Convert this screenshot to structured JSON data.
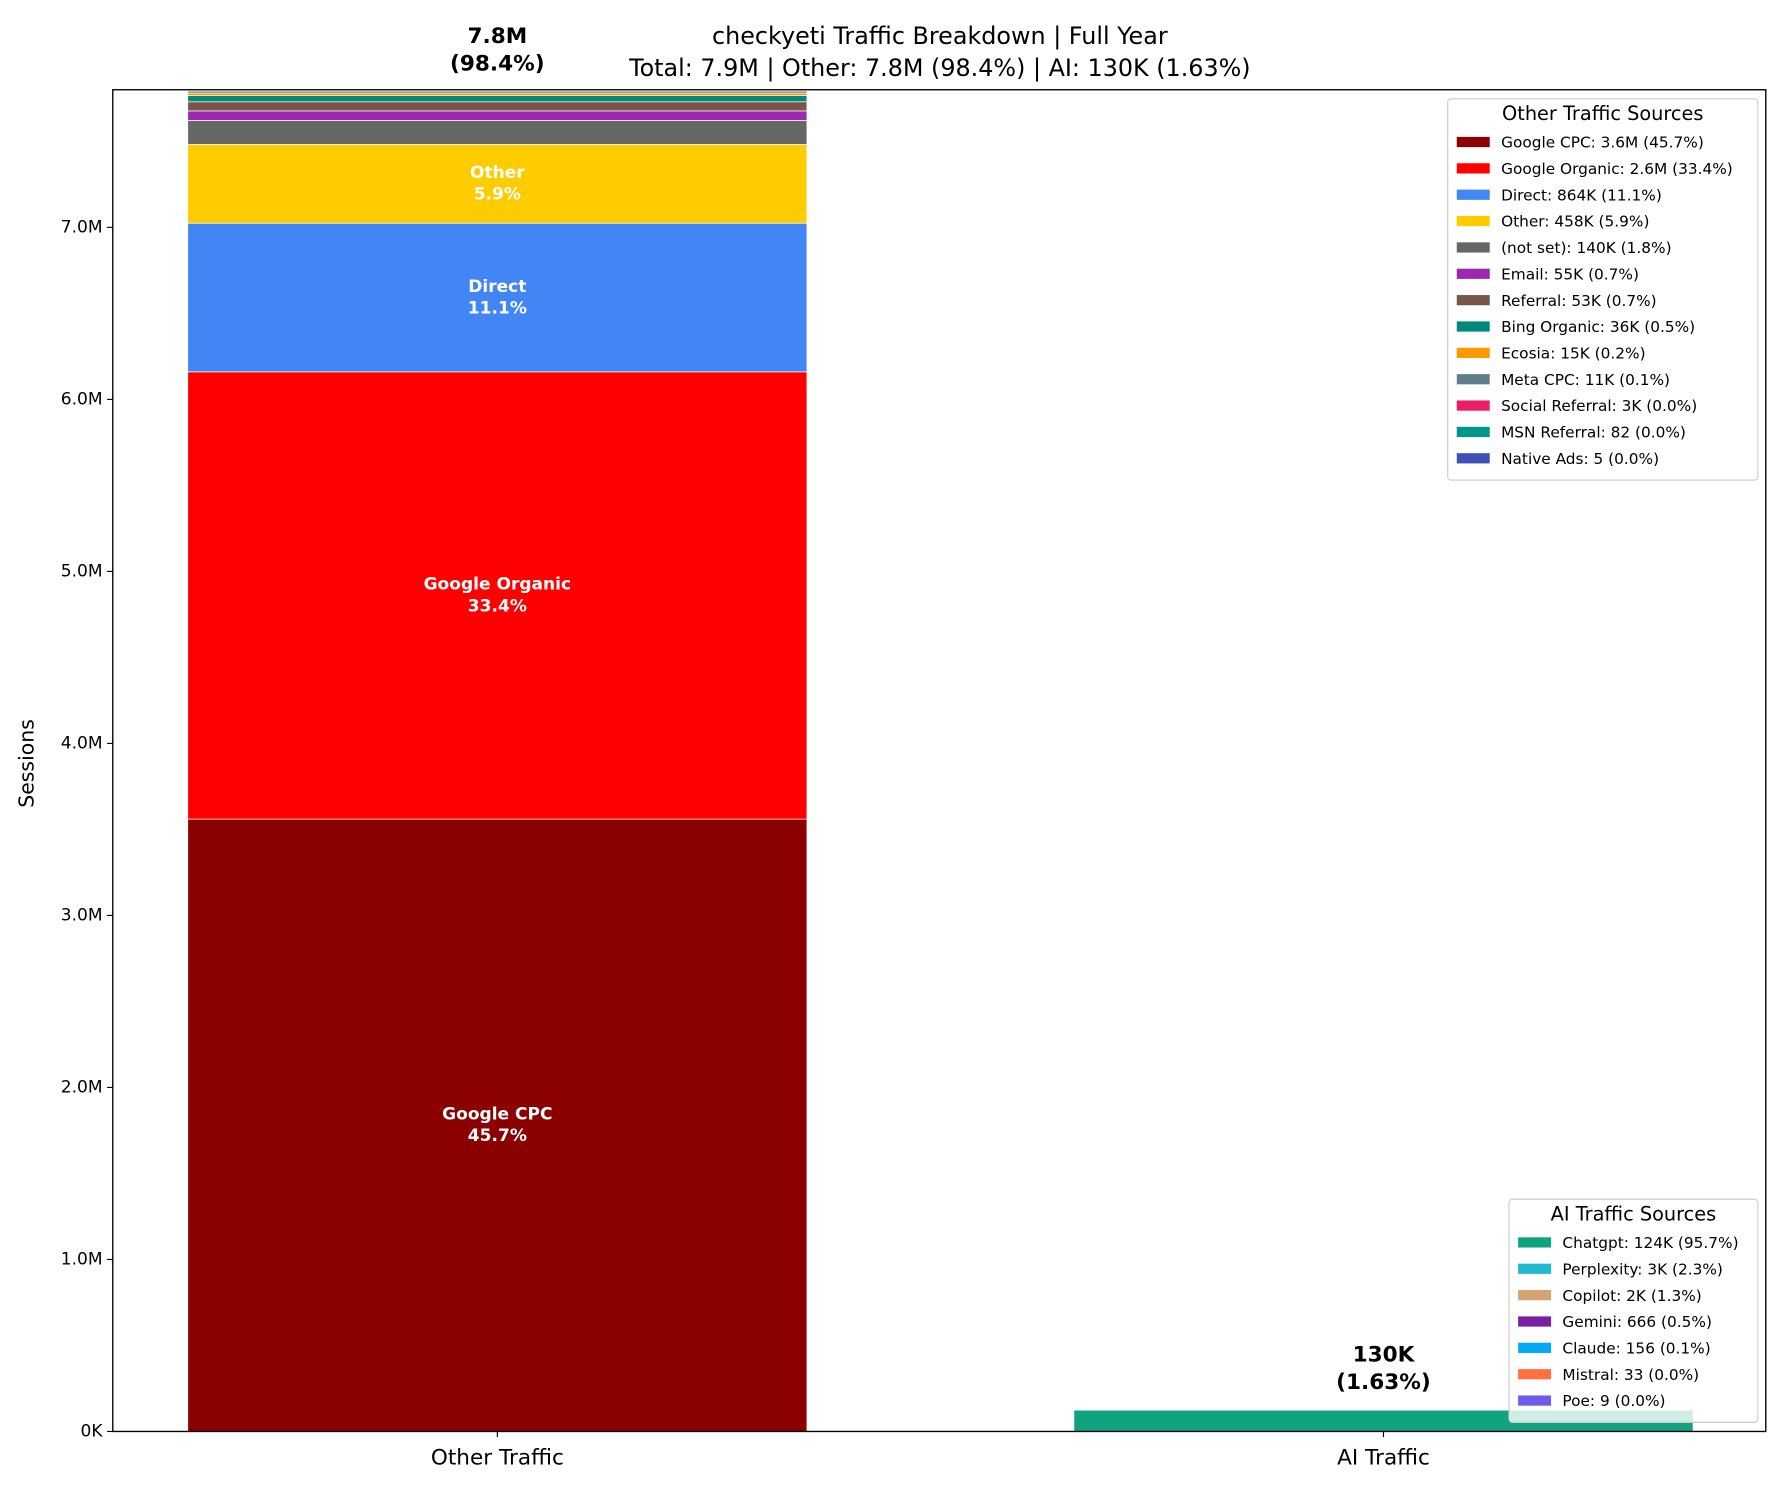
{
  "chart_data": {
    "type": "bar",
    "stacked": true,
    "title": "checkyeti Traffic Breakdown | Full Year",
    "subtitle": "Total: 7.9M | Other: 7.8M (98.4%) | AI: 130K (1.63%)",
    "ylabel": "Sessions",
    "ylim": [
      0,
      7800000
    ],
    "yticks": [
      {
        "value": 0,
        "label": "0K"
      },
      {
        "value": 1000000,
        "label": "1.0M"
      },
      {
        "value": 2000000,
        "label": "2.0M"
      },
      {
        "value": 3000000,
        "label": "3.0M"
      },
      {
        "value": 4000000,
        "label": "4.0M"
      },
      {
        "value": 5000000,
        "label": "5.0M"
      },
      {
        "value": 6000000,
        "label": "6.0M"
      },
      {
        "value": 7000000,
        "label": "7.0M"
      }
    ],
    "grid": false,
    "stacks": [
      {
        "category": "Other Traffic",
        "total_label": [
          "7.8M",
          "(98.4%)"
        ],
        "legend_title": "Other Traffic Sources",
        "legend_loc": "upper right",
        "segments": [
          {
            "legend_label": "Google CPC: 3.6M (45.7%)",
            "value": 3560000,
            "color": "#8b0000",
            "bar_label": [
              "Google CPC",
              "45.7%"
            ]
          },
          {
            "legend_label": "Google Organic: 2.6M (33.4%)",
            "value": 2600000,
            "color": "#ff0000",
            "bar_label": [
              "Google Organic",
              "33.4%"
            ]
          },
          {
            "legend_label": "Direct: 864K (11.1%)",
            "value": 864000,
            "color": "#4285f4",
            "bar_label": [
              "Direct",
              "11.1%"
            ]
          },
          {
            "legend_label": "Other: 458K (5.9%)",
            "value": 458000,
            "color": "#ffcc00",
            "bar_label": [
              "Other",
              "5.9%"
            ]
          },
          {
            "legend_label": "(not set): 140K (1.8%)",
            "value": 140000,
            "color": "#666666"
          },
          {
            "legend_label": "Email: 55K (0.7%)",
            "value": 55000,
            "color": "#9c27b0"
          },
          {
            "legend_label": "Referral: 53K (0.7%)",
            "value": 53000,
            "color": "#795548"
          },
          {
            "legend_label": "Bing Organic: 36K (0.5%)",
            "value": 36000,
            "color": "#00897b"
          },
          {
            "legend_label": "Ecosia: 15K (0.2%)",
            "value": 15000,
            "color": "#ff9800"
          },
          {
            "legend_label": "Meta CPC: 11K (0.1%)",
            "value": 11000,
            "color": "#607d8b"
          },
          {
            "legend_label": "Social Referral: 3K (0.0%)",
            "value": 3000,
            "color": "#e91e63"
          },
          {
            "legend_label": "MSN Referral: 82 (0.0%)",
            "value": 82,
            "color": "#009688"
          },
          {
            "legend_label": "Native Ads: 5 (0.0%)",
            "value": 5,
            "color": "#3f51b5"
          }
        ]
      },
      {
        "category": "AI Traffic",
        "total_label": [
          "130K",
          "(1.63%)"
        ],
        "legend_title": "AI Traffic Sources",
        "legend_loc": "lower right",
        "segments": [
          {
            "legend_label": "Chatgpt: 124K (95.7%)",
            "value": 124000,
            "color": "#10a37f"
          },
          {
            "legend_label": "Perplexity: 3K (2.3%)",
            "value": 3000,
            "color": "#20b8cd"
          },
          {
            "legend_label": "Copilot: 2K (1.3%)",
            "value": 2000,
            "color": "#d4a373"
          },
          {
            "legend_label": "Gemini: 666 (0.5%)",
            "value": 666,
            "color": "#7b1fa2"
          },
          {
            "legend_label": "Claude: 156 (0.1%)",
            "value": 156,
            "color": "#03a9f4"
          },
          {
            "legend_label": "Mistral: 33 (0.0%)",
            "value": 33,
            "color": "#ff7043"
          },
          {
            "legend_label": "Poe: 9 (0.0%)",
            "value": 9,
            "color": "#6c5ce7"
          }
        ]
      }
    ]
  }
}
